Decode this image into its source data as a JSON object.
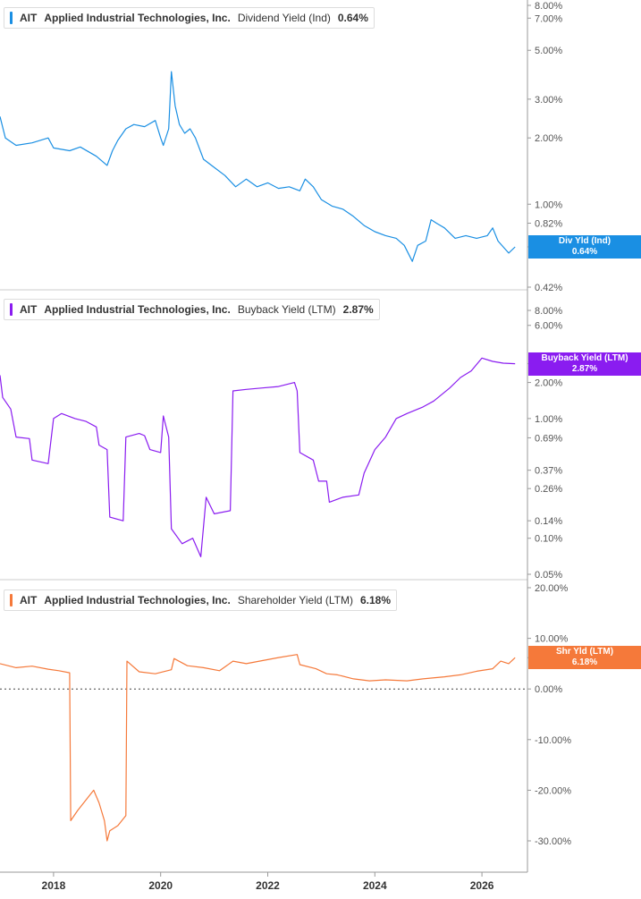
{
  "panels": [
    {
      "id": "dividend",
      "ticker": "AIT",
      "company": "Applied Industrial Technologies, Inc.",
      "metric": "Dividend Yield (Ind)",
      "current_value": "0.64%",
      "badge_label": "Div Yld (Ind)",
      "badge_value": "0.64%",
      "color": "#1a8fe3"
    },
    {
      "id": "buyback",
      "ticker": "AIT",
      "company": "Applied Industrial Technologies, Inc.",
      "metric": "Buyback Yield (LTM)",
      "current_value": "2.87%",
      "badge_label": "Buyback Yield (LTM)",
      "badge_value": "2.87%",
      "color": "#8a1cf0"
    },
    {
      "id": "shareholder",
      "ticker": "AIT",
      "company": "Applied Industrial Technologies, Inc.",
      "metric": "Shareholder Yield (LTM)",
      "current_value": "6.18%",
      "badge_label": "Shr Yld (LTM)",
      "badge_value": "6.18%",
      "color": "#f5793a"
    }
  ],
  "chart_data": [
    {
      "type": "line",
      "title": "AIT Applied Industrial Technologies, Inc. Dividend Yield (Ind) 0.64%",
      "series": [
        {
          "name": "Dividend Yield (Ind)",
          "color": "#1a8fe3",
          "points": [
            [
              2017.0,
              2.5
            ],
            [
              2017.1,
              2.0
            ],
            [
              2017.3,
              1.85
            ],
            [
              2017.6,
              1.9
            ],
            [
              2017.9,
              2.0
            ],
            [
              2018.0,
              1.8
            ],
            [
              2018.3,
              1.75
            ],
            [
              2018.5,
              1.82
            ],
            [
              2018.8,
              1.65
            ],
            [
              2019.0,
              1.5
            ],
            [
              2019.1,
              1.75
            ],
            [
              2019.2,
              1.95
            ],
            [
              2019.35,
              2.2
            ],
            [
              2019.5,
              2.3
            ],
            [
              2019.7,
              2.25
            ],
            [
              2019.9,
              2.4
            ],
            [
              2020.0,
              2.0
            ],
            [
              2020.05,
              1.85
            ],
            [
              2020.15,
              2.2
            ],
            [
              2020.2,
              4.0
            ],
            [
              2020.27,
              2.8
            ],
            [
              2020.35,
              2.3
            ],
            [
              2020.45,
              2.1
            ],
            [
              2020.55,
              2.2
            ],
            [
              2020.65,
              2.0
            ],
            [
              2020.8,
              1.6
            ],
            [
              2020.95,
              1.5
            ],
            [
              2021.2,
              1.35
            ],
            [
              2021.4,
              1.2
            ],
            [
              2021.6,
              1.3
            ],
            [
              2021.8,
              1.2
            ],
            [
              2022.0,
              1.25
            ],
            [
              2022.2,
              1.18
            ],
            [
              2022.4,
              1.2
            ],
            [
              2022.6,
              1.15
            ],
            [
              2022.7,
              1.3
            ],
            [
              2022.85,
              1.2
            ],
            [
              2023.0,
              1.05
            ],
            [
              2023.2,
              0.98
            ],
            [
              2023.4,
              0.95
            ],
            [
              2023.6,
              0.88
            ],
            [
              2023.8,
              0.8
            ],
            [
              2024.0,
              0.75
            ],
            [
              2024.2,
              0.72
            ],
            [
              2024.4,
              0.7
            ],
            [
              2024.55,
              0.65
            ],
            [
              2024.7,
              0.55
            ],
            [
              2024.8,
              0.65
            ],
            [
              2024.95,
              0.68
            ],
            [
              2025.05,
              0.85
            ],
            [
              2025.15,
              0.82
            ],
            [
              2025.3,
              0.78
            ],
            [
              2025.5,
              0.7
            ],
            [
              2025.7,
              0.72
            ],
            [
              2025.9,
              0.7
            ],
            [
              2026.1,
              0.72
            ],
            [
              2026.2,
              0.78
            ],
            [
              2026.3,
              0.68
            ],
            [
              2026.5,
              0.6
            ],
            [
              2026.62,
              0.64
            ]
          ]
        }
      ],
      "x_ticks": [
        "2018",
        "2020",
        "2022",
        "2024",
        "2026"
      ],
      "y_ticks": [
        "8.00%",
        "7.00%",
        "5.00%",
        "3.00%",
        "2.00%",
        "1.00%",
        "0.82%",
        "0.64%",
        "0.42%"
      ],
      "y_scale": "log",
      "ylim": [
        0.4,
        8.4
      ]
    },
    {
      "type": "line",
      "title": "AIT Applied Industrial Technologies, Inc. Buyback Yield (LTM) 2.87%",
      "series": [
        {
          "name": "Buyback Yield (LTM)",
          "color": "#8a1cf0",
          "points": [
            [
              2017.0,
              2.3
            ],
            [
              2017.05,
              1.5
            ],
            [
              2017.2,
              1.2
            ],
            [
              2017.3,
              0.7
            ],
            [
              2017.55,
              0.68
            ],
            [
              2017.6,
              0.45
            ],
            [
              2017.9,
              0.42
            ],
            [
              2018.0,
              1.0
            ],
            [
              2018.15,
              1.1
            ],
            [
              2018.4,
              1.0
            ],
            [
              2018.6,
              0.95
            ],
            [
              2018.8,
              0.85
            ],
            [
              2018.85,
              0.6
            ],
            [
              2019.0,
              0.55
            ],
            [
              2019.05,
              0.15
            ],
            [
              2019.3,
              0.14
            ],
            [
              2019.35,
              0.7
            ],
            [
              2019.6,
              0.75
            ],
            [
              2019.7,
              0.72
            ],
            [
              2019.8,
              0.55
            ],
            [
              2020.0,
              0.52
            ],
            [
              2020.05,
              1.05
            ],
            [
              2020.15,
              0.7
            ],
            [
              2020.2,
              0.12
            ],
            [
              2020.4,
              0.09
            ],
            [
              2020.6,
              0.1
            ],
            [
              2020.75,
              0.07
            ],
            [
              2020.85,
              0.22
            ],
            [
              2021.0,
              0.16
            ],
            [
              2021.3,
              0.17
            ],
            [
              2021.35,
              1.7
            ],
            [
              2021.6,
              1.75
            ],
            [
              2021.9,
              1.8
            ],
            [
              2022.2,
              1.85
            ],
            [
              2022.5,
              2.0
            ],
            [
              2022.55,
              1.7
            ],
            [
              2022.6,
              0.52
            ],
            [
              2022.85,
              0.45
            ],
            [
              2022.95,
              0.3
            ],
            [
              2023.1,
              0.3
            ],
            [
              2023.15,
              0.2
            ],
            [
              2023.4,
              0.22
            ],
            [
              2023.7,
              0.23
            ],
            [
              2023.8,
              0.35
            ],
            [
              2024.0,
              0.55
            ],
            [
              2024.2,
              0.7
            ],
            [
              2024.4,
              1.0
            ],
            [
              2024.6,
              1.1
            ],
            [
              2024.9,
              1.25
            ],
            [
              2025.1,
              1.4
            ],
            [
              2025.4,
              1.8
            ],
            [
              2025.6,
              2.2
            ],
            [
              2025.8,
              2.5
            ],
            [
              2026.0,
              3.2
            ],
            [
              2026.2,
              3.0
            ],
            [
              2026.4,
              2.9
            ],
            [
              2026.62,
              2.87
            ]
          ]
        }
      ],
      "x_ticks": [
        "2018",
        "2020",
        "2022",
        "2024",
        "2026"
      ],
      "y_ticks": [
        "8.00%",
        "6.00%",
        "2.87%",
        "2.00%",
        "1.00%",
        "0.69%",
        "0.37%",
        "0.26%",
        "0.14%",
        "0.10%",
        "0.05%"
      ],
      "y_scale": "log",
      "ylim": [
        0.045,
        10.0
      ]
    },
    {
      "type": "line",
      "title": "AIT Applied Industrial Technologies, Inc. Shareholder Yield (LTM) 6.18%",
      "series": [
        {
          "name": "Shareholder Yield (LTM)",
          "color": "#f5793a",
          "points": [
            [
              2017.0,
              5.0
            ],
            [
              2017.3,
              4.2
            ],
            [
              2017.6,
              4.5
            ],
            [
              2017.9,
              3.9
            ],
            [
              2018.1,
              3.6
            ],
            [
              2018.3,
              3.2
            ],
            [
              2018.32,
              -26.0
            ],
            [
              2018.45,
              -24.0
            ],
            [
              2018.6,
              -22.0
            ],
            [
              2018.75,
              -20.0
            ],
            [
              2018.85,
              -22.5
            ],
            [
              2018.95,
              -26.0
            ],
            [
              2019.0,
              -30.0
            ],
            [
              2019.05,
              -28.0
            ],
            [
              2019.2,
              -27.0
            ],
            [
              2019.35,
              -25.0
            ],
            [
              2019.37,
              5.5
            ],
            [
              2019.6,
              3.4
            ],
            [
              2019.9,
              3.0
            ],
            [
              2020.2,
              3.8
            ],
            [
              2020.25,
              6.0
            ],
            [
              2020.5,
              4.6
            ],
            [
              2020.8,
              4.2
            ],
            [
              2021.1,
              3.6
            ],
            [
              2021.35,
              5.5
            ],
            [
              2021.6,
              5.0
            ],
            [
              2021.9,
              5.6
            ],
            [
              2022.2,
              6.2
            ],
            [
              2022.55,
              6.8
            ],
            [
              2022.6,
              4.8
            ],
            [
              2022.9,
              4.0
            ],
            [
              2023.1,
              3.0
            ],
            [
              2023.3,
              2.8
            ],
            [
              2023.6,
              2.0
            ],
            [
              2023.9,
              1.6
            ],
            [
              2024.2,
              1.8
            ],
            [
              2024.6,
              1.6
            ],
            [
              2024.9,
              2.0
            ],
            [
              2025.3,
              2.4
            ],
            [
              2025.6,
              2.8
            ],
            [
              2025.9,
              3.5
            ],
            [
              2026.2,
              4.0
            ],
            [
              2026.35,
              5.5
            ],
            [
              2026.5,
              5.0
            ],
            [
              2026.62,
              6.18
            ]
          ]
        }
      ],
      "x_ticks": [
        "2018",
        "2020",
        "2022",
        "2024",
        "2026"
      ],
      "y_ticks": [
        "20.00%",
        "10.00%",
        "6.18%",
        "0.00%",
        "-10.00%",
        "-20.00%",
        "-30.00%"
      ],
      "y_scale": "linear",
      "ylim": [
        -36.0,
        20.0
      ],
      "reference_line": 0
    }
  ]
}
